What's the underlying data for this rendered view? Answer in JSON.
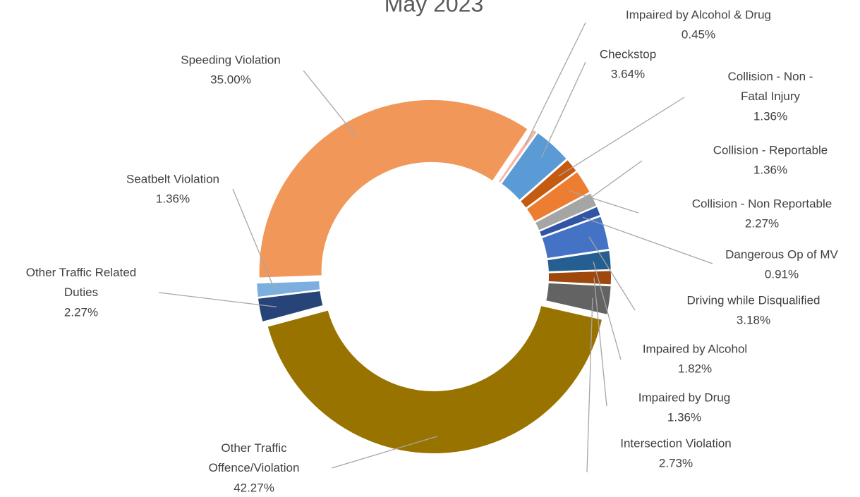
{
  "chart_data": {
    "type": "donut",
    "title": "May 2023",
    "categories": [
      "Impaired by Alcohol & Drug",
      "Checkstop",
      "Collision - Non - Fatal Injury",
      "Collision - Non Reportable",
      "Collision - Reportable",
      "Dangerous Op of MV",
      "Driving while Disqualified",
      "Impaired by Alcohol",
      "Impaired by Drug",
      "Intersection Violation",
      "Other Traffic Offence/Violation",
      "Other Traffic Related Duties",
      "Seatbelt Violation",
      "Speeding Violation"
    ],
    "values": [
      0.45,
      3.64,
      1.36,
      2.27,
      1.36,
      0.91,
      3.18,
      1.82,
      1.36,
      2.73,
      42.27,
      2.27,
      1.36,
      35.0
    ],
    "value_labels": [
      "0.45%",
      "3.64%",
      "1.36%",
      "2.27%",
      "1.36%",
      "0.91%",
      "3.18%",
      "1.82%",
      "1.36%",
      "2.73%",
      "42.27%",
      "2.27%",
      "1.36%",
      "35.00%"
    ],
    "colors": [
      "#f4b6a7",
      "#5b9bd5",
      "#c55a11",
      "#ed7d31",
      "#a5a5a5",
      "#2f55a4",
      "#4472c4",
      "#255e91",
      "#9e480e",
      "#636363",
      "#997300",
      "#264478",
      "#7cafdd",
      "#f1975a"
    ]
  }
}
